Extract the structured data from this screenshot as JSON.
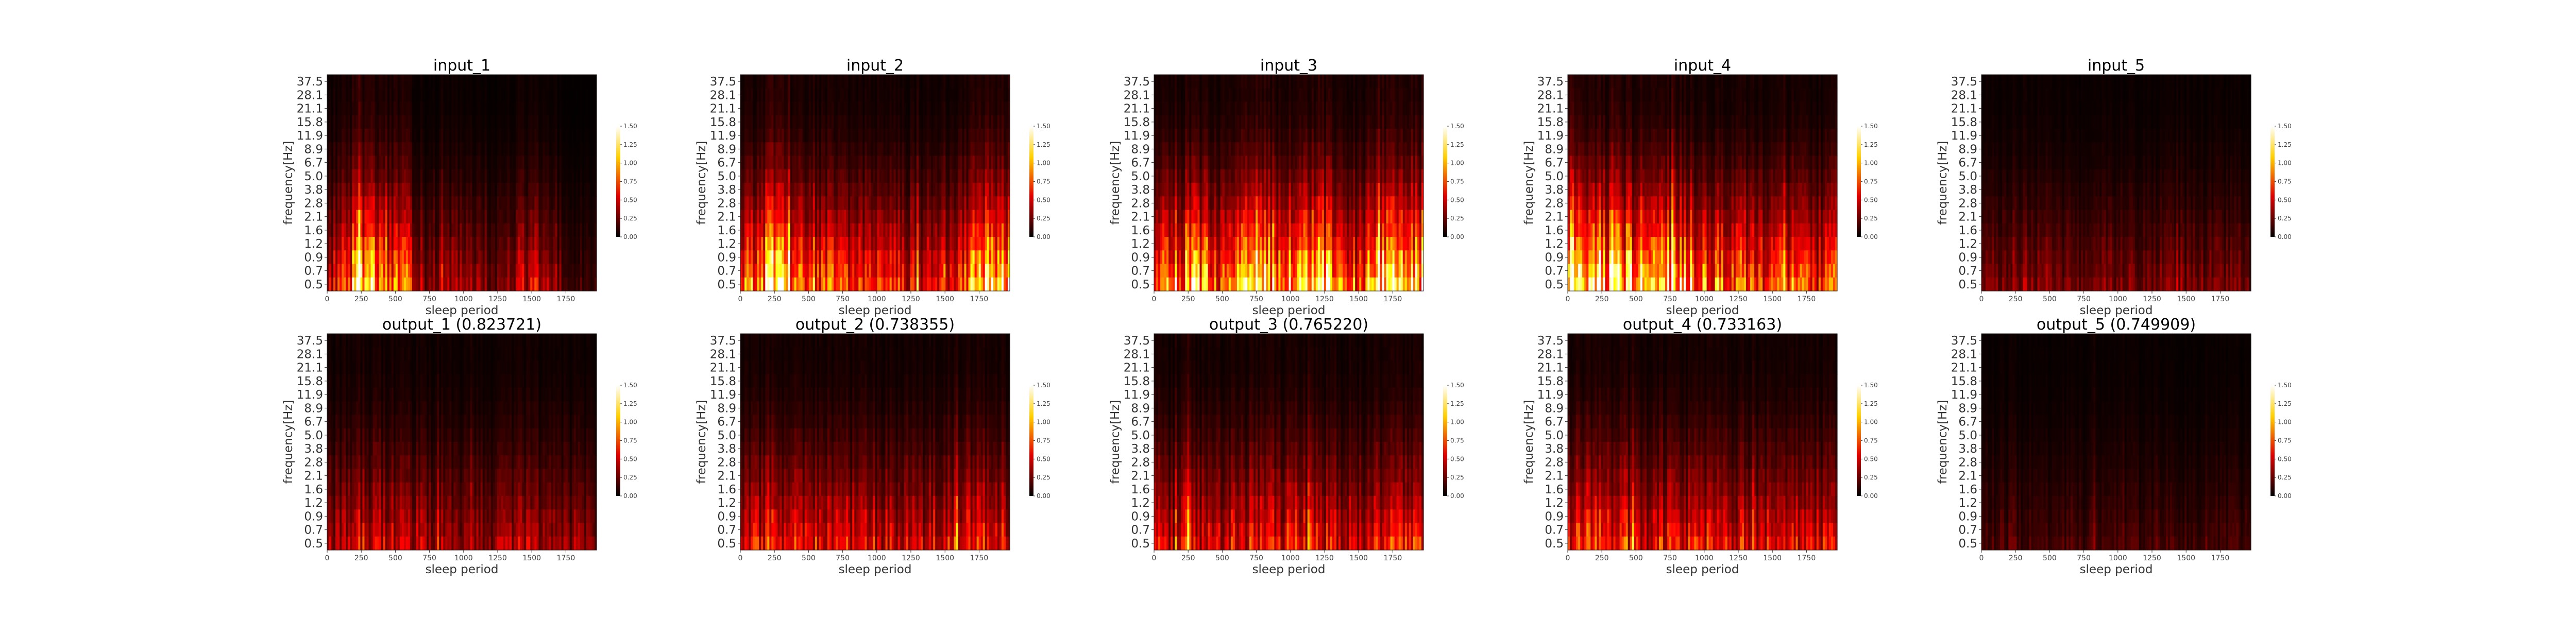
{
  "chart_data": [
    {
      "type": "heatmap",
      "title": "input_1",
      "xlabel": "sleep period",
      "ylabel": "frequency[Hz]",
      "yticks": [
        "37.5",
        "28.1",
        "21.1",
        "15.8",
        "11.9",
        "8.9",
        "6.7",
        "5.0",
        "3.8",
        "2.8",
        "2.1",
        "1.6",
        "1.2",
        "0.9",
        "0.7",
        "0.5"
      ],
      "xticks": [
        "0",
        "250",
        "500",
        "750",
        "1000",
        "1250",
        "1500",
        "1750"
      ],
      "xlim": [
        0,
        1975
      ],
      "colorbar": {
        "ticks": [
          "1.50",
          "1.25",
          "1.00",
          "0.75",
          "0.50",
          "0.25",
          "0.00"
        ],
        "range": [
          0,
          1.5
        ],
        "colormap": "hot"
      },
      "intensity": [
        0.35,
        0.85,
        0.72,
        0.25,
        0.3,
        0.18,
        0.45,
        0.1
      ],
      "low_bias": 0.75
    },
    {
      "type": "heatmap",
      "title": "input_2",
      "xlabel": "sleep period",
      "ylabel": "frequency[Hz]",
      "yticks": [
        "37.5",
        "28.1",
        "21.1",
        "15.8",
        "11.9",
        "8.9",
        "6.7",
        "5.0",
        "3.8",
        "2.8",
        "2.1",
        "1.6",
        "1.2",
        "0.9",
        "0.7",
        "0.5"
      ],
      "xticks": [
        "0",
        "250",
        "500",
        "750",
        "1000",
        "1250",
        "1500",
        "1750"
      ],
      "xlim": [
        0,
        1975
      ],
      "colorbar": {
        "ticks": [
          "1.50",
          "1.25",
          "1.00",
          "0.75",
          "0.50",
          "0.25",
          "0.00"
        ],
        "range": [
          0,
          1.5
        ],
        "colormap": "hot"
      },
      "intensity": [
        0.6,
        0.95,
        0.65,
        0.5,
        0.55,
        0.45,
        0.5,
        0.8
      ],
      "low_bias": 0.8
    },
    {
      "type": "heatmap",
      "title": "input_3",
      "xlabel": "sleep period",
      "ylabel": "frequency[Hz]",
      "yticks": [
        "37.5",
        "28.1",
        "21.1",
        "15.8",
        "11.9",
        "8.9",
        "6.7",
        "5.0",
        "3.8",
        "2.8",
        "2.1",
        "1.6",
        "1.2",
        "0.9",
        "0.7",
        "0.5"
      ],
      "xticks": [
        "0",
        "250",
        "500",
        "750",
        "1000",
        "1250",
        "1500",
        "1750"
      ],
      "xlim": [
        0,
        1975
      ],
      "colorbar": {
        "ticks": [
          "1.50",
          "1.25",
          "1.00",
          "0.75",
          "0.50",
          "0.25",
          "0.00"
        ],
        "range": [
          0,
          1.5
        ],
        "colormap": "hot"
      },
      "intensity": [
        0.55,
        0.75,
        0.6,
        0.95,
        0.7,
        0.85,
        0.6,
        0.9
      ],
      "low_bias": 0.85
    },
    {
      "type": "heatmap",
      "title": "input_4",
      "xlabel": "sleep period",
      "ylabel": "frequency[Hz]",
      "yticks": [
        "37.5",
        "28.1",
        "21.1",
        "15.8",
        "11.9",
        "8.9",
        "6.7",
        "5.0",
        "3.8",
        "2.8",
        "2.1",
        "1.6",
        "1.2",
        "0.9",
        "0.7",
        "0.5"
      ],
      "xticks": [
        "0",
        "250",
        "500",
        "750",
        "1000",
        "1250",
        "1500",
        "1750"
      ],
      "xlim": [
        0,
        1975
      ],
      "colorbar": {
        "ticks": [
          "1.50",
          "1.25",
          "1.00",
          "0.75",
          "0.50",
          "0.25",
          "0.00"
        ],
        "range": [
          0,
          1.5
        ],
        "colormap": "hot"
      },
      "intensity": [
        0.95,
        0.85,
        0.8,
        0.75,
        0.65,
        0.55,
        0.6,
        0.5
      ],
      "low_bias": 0.9
    },
    {
      "type": "heatmap",
      "title": "input_5",
      "xlabel": "sleep period",
      "ylabel": "frequency[Hz]",
      "yticks": [
        "37.5",
        "28.1",
        "21.1",
        "15.8",
        "11.9",
        "8.9",
        "6.7",
        "5.0",
        "3.8",
        "2.8",
        "2.1",
        "1.6",
        "1.2",
        "0.9",
        "0.7",
        "0.5"
      ],
      "xticks": [
        "0",
        "250",
        "500",
        "750",
        "1000",
        "1250",
        "1500",
        "1750"
      ],
      "xlim": [
        0,
        1975
      ],
      "colorbar": {
        "ticks": [
          "1.50",
          "1.25",
          "1.00",
          "0.75",
          "0.50",
          "0.25",
          "0.00"
        ],
        "range": [
          0,
          1.5
        ],
        "colormap": "hot"
      },
      "intensity": [
        0.3,
        0.35,
        0.3,
        0.28,
        0.3,
        0.25,
        0.3,
        0.28
      ],
      "low_bias": 0.55
    },
    {
      "type": "heatmap",
      "title": "output_1 (0.823721)",
      "xlabel": "sleep period",
      "ylabel": "frequency[Hz]",
      "yticks": [
        "37.5",
        "28.1",
        "21.1",
        "15.8",
        "11.9",
        "8.9",
        "6.7",
        "5.0",
        "3.8",
        "2.8",
        "2.1",
        "1.6",
        "1.2",
        "0.9",
        "0.7",
        "0.5"
      ],
      "xticks": [
        "0",
        "250",
        "500",
        "750",
        "1000",
        "1250",
        "1500",
        "1750"
      ],
      "xlim": [
        0,
        1975
      ],
      "colorbar": {
        "ticks": [
          "1.50",
          "1.25",
          "1.00",
          "0.75",
          "0.50",
          "0.25",
          "0.00"
        ],
        "range": [
          0,
          1.5
        ],
        "colormap": "hot"
      },
      "intensity": [
        0.4,
        0.55,
        0.5,
        0.4,
        0.4,
        0.35,
        0.45,
        0.35
      ],
      "low_bias": 0.55
    },
    {
      "type": "heatmap",
      "title": "output_2 (0.738355)",
      "xlabel": "sleep period",
      "ylabel": "frequency[Hz]",
      "yticks": [
        "37.5",
        "28.1",
        "21.1",
        "15.8",
        "11.9",
        "8.9",
        "6.7",
        "5.0",
        "3.8",
        "2.8",
        "2.1",
        "1.6",
        "1.2",
        "0.9",
        "0.7",
        "0.5"
      ],
      "xticks": [
        "0",
        "250",
        "500",
        "750",
        "1000",
        "1250",
        "1500",
        "1750"
      ],
      "xlim": [
        0,
        1975
      ],
      "colorbar": {
        "ticks": [
          "1.50",
          "1.25",
          "1.00",
          "0.75",
          "0.50",
          "0.25",
          "0.00"
        ],
        "range": [
          0,
          1.5
        ],
        "colormap": "hot"
      },
      "intensity": [
        0.45,
        0.6,
        0.5,
        0.5,
        0.5,
        0.45,
        0.5,
        0.55
      ],
      "low_bias": 0.6
    },
    {
      "type": "heatmap",
      "title": "output_3 (0.765220)",
      "xlabel": "sleep period",
      "ylabel": "frequency[Hz]",
      "yticks": [
        "37.5",
        "28.1",
        "21.1",
        "15.8",
        "11.9",
        "8.9",
        "6.7",
        "5.0",
        "3.8",
        "2.8",
        "2.1",
        "1.6",
        "1.2",
        "0.9",
        "0.7",
        "0.5"
      ],
      "xticks": [
        "0",
        "250",
        "500",
        "750",
        "1000",
        "1250",
        "1500",
        "1750"
      ],
      "xlim": [
        0,
        1975
      ],
      "colorbar": {
        "ticks": [
          "1.50",
          "1.25",
          "1.00",
          "0.75",
          "0.50",
          "0.25",
          "0.00"
        ],
        "range": [
          0,
          1.5
        ],
        "colormap": "hot"
      },
      "intensity": [
        0.45,
        0.55,
        0.5,
        0.6,
        0.55,
        0.55,
        0.5,
        0.55
      ],
      "low_bias": 0.6
    },
    {
      "type": "heatmap",
      "title": "output_4 (0.733163)",
      "xlabel": "sleep period",
      "ylabel": "frequency[Hz]",
      "yticks": [
        "37.5",
        "28.1",
        "21.1",
        "15.8",
        "11.9",
        "8.9",
        "6.7",
        "5.0",
        "3.8",
        "2.8",
        "2.1",
        "1.6",
        "1.2",
        "0.9",
        "0.7",
        "0.5"
      ],
      "xticks": [
        "0",
        "250",
        "500",
        "750",
        "1000",
        "1250",
        "1500",
        "1750"
      ],
      "xlim": [
        0,
        1975
      ],
      "colorbar": {
        "ticks": [
          "1.50",
          "1.25",
          "1.00",
          "0.75",
          "0.50",
          "0.25",
          "0.00"
        ],
        "range": [
          0,
          1.5
        ],
        "colormap": "hot"
      },
      "intensity": [
        0.6,
        0.6,
        0.55,
        0.55,
        0.5,
        0.5,
        0.5,
        0.5
      ],
      "low_bias": 0.62
    },
    {
      "type": "heatmap",
      "title": "output_5 (0.749909)",
      "xlabel": "sleep period",
      "ylabel": "frequency[Hz]",
      "yticks": [
        "37.5",
        "28.1",
        "21.1",
        "15.8",
        "11.9",
        "8.9",
        "6.7",
        "5.0",
        "3.8",
        "2.8",
        "2.1",
        "1.6",
        "1.2",
        "0.9",
        "0.7",
        "0.5"
      ],
      "xticks": [
        "0",
        "250",
        "500",
        "750",
        "1000",
        "1250",
        "1500",
        "1750"
      ],
      "xlim": [
        0,
        1975
      ],
      "colorbar": {
        "ticks": [
          "1.50",
          "1.25",
          "1.00",
          "0.75",
          "0.50",
          "0.25",
          "0.00"
        ],
        "range": [
          0,
          1.5
        ],
        "colormap": "hot"
      },
      "intensity": [
        0.25,
        0.28,
        0.25,
        0.25,
        0.25,
        0.22,
        0.25,
        0.25
      ],
      "low_bias": 0.35
    }
  ]
}
